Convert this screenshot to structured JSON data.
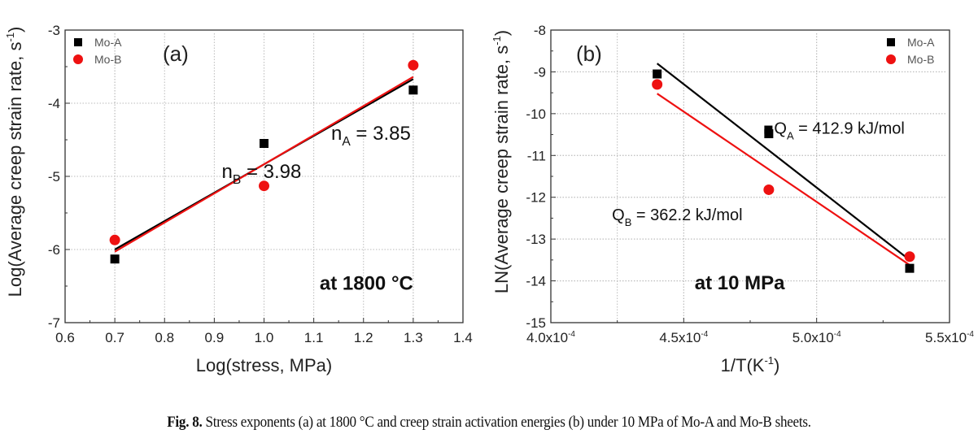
{
  "chart_data": [
    {
      "type": "scatter",
      "panel_label": "(a)",
      "xlabel": "Log(stress, MPa)",
      "ylabel": "Log(Average creep strain rate, s",
      "ylabel_sup": "-1",
      "ylabel_tail": ")",
      "xlim": [
        0.6,
        1.4
      ],
      "ylim": [
        -7,
        -3
      ],
      "x_ticks": [
        0.6,
        0.7,
        0.8,
        0.9,
        1.0,
        1.1,
        1.2,
        1.3,
        1.4
      ],
      "x_tick_labels": [
        "0.6",
        "0.7",
        "0.8",
        "0.9",
        "1.0",
        "1.1",
        "1.2",
        "1.3",
        "1.4"
      ],
      "y_ticks": [
        -7,
        -6,
        -5,
        -4,
        -3
      ],
      "y_tick_labels": [
        "-7",
        "-6",
        "-5",
        "-4",
        "-3"
      ],
      "grid": true,
      "legend_position": "top-left",
      "series": [
        {
          "name": "Mo-A",
          "marker": "square",
          "color": "#000000",
          "x": [
            0.7,
            1.0,
            1.3
          ],
          "y": [
            -6.13,
            -4.55,
            -3.82
          ],
          "fit": {
            "x": [
              0.7,
              1.3
            ],
            "y": [
              -6.0,
              -3.67
            ]
          }
        },
        {
          "name": "Mo-B",
          "marker": "circle",
          "color": "#ee1111",
          "x": [
            0.7,
            1.0,
            1.3
          ],
          "y": [
            -5.87,
            -5.13,
            -3.48
          ],
          "fit": {
            "x": [
              0.7,
              1.3
            ],
            "y": [
              -6.03,
              -3.64
            ]
          }
        }
      ],
      "annotations": [
        {
          "id": "nA",
          "main": "n",
          "sub": "A",
          "rest": " = 3.85",
          "x": 1.295,
          "y": -4.5
        },
        {
          "id": "nB",
          "main": "n",
          "sub": "B",
          "rest": " = 3.98",
          "x": 0.915,
          "y": -5.02
        },
        {
          "id": "cond",
          "text": "at 1800 °C",
          "x": 1.3,
          "y": -6.55
        }
      ]
    },
    {
      "type": "scatter",
      "panel_label": "(b)",
      "xlabel": "1/T(K",
      "xlabel_sup": "-1",
      "xlabel_tail": ")",
      "ylabel": "LN(Average creep strain rate, s",
      "ylabel_sup": "-1",
      "ylabel_tail": ")",
      "xlim": [
        0.0004,
        0.00055
      ],
      "ylim": [
        -15,
        -8
      ],
      "x_ticks": [
        0.0004,
        0.00045,
        0.0005,
        0.00055
      ],
      "x_tick_labels": [
        "4.0x10",
        "4.5x10",
        "5.0x10",
        "5.5x10"
      ],
      "x_tick_exp": "-4",
      "y_ticks": [
        -15,
        -14,
        -13,
        -12,
        -11,
        -10,
        -9,
        -8
      ],
      "y_tick_labels": [
        "-15",
        "-14",
        "-13",
        "-12",
        "-11",
        "-10",
        "-9",
        "-8"
      ],
      "grid": true,
      "legend_position": "top-right",
      "series": [
        {
          "name": "Mo-A",
          "marker": "square",
          "color": "#000000",
          "x": [
            0.00044,
            0.000482,
            0.000535
          ],
          "y": [
            -9.05,
            -10.48,
            -13.7
          ],
          "fit": {
            "x": [
              0.00044,
              0.000535
            ],
            "y": [
              -8.8,
              -13.5
            ]
          }
        },
        {
          "name": "Mo-B",
          "marker": "circle",
          "color": "#ee1111",
          "x": [
            0.00044,
            0.000482,
            0.000535
          ],
          "y": [
            -9.3,
            -11.82,
            -13.42
          ],
          "fit": {
            "x": [
              0.00044,
              0.000535
            ],
            "y": [
              -9.52,
              -13.62
            ]
          }
        }
      ],
      "annotations": [
        {
          "id": "QA",
          "main": "Q",
          "sub": "A",
          "rest": " = 412.9 kJ/mol",
          "x": 0.000484,
          "y": -10.48
        },
        {
          "id": "QB",
          "main": "Q",
          "sub": "B",
          "rest": " = 362.2 kJ/mol",
          "x": 0.000423,
          "y": -12.55
        },
        {
          "id": "cond",
          "text": "at 10 MPa",
          "x": 0.000488,
          "y": -14.2
        }
      ]
    }
  ],
  "caption": {
    "label": "Fig. 8.",
    "text": " Stress exponents (a) at 1800 °C and creep strain activation energies (b) under 10 MPa of Mo-A and Mo-B sheets."
  }
}
